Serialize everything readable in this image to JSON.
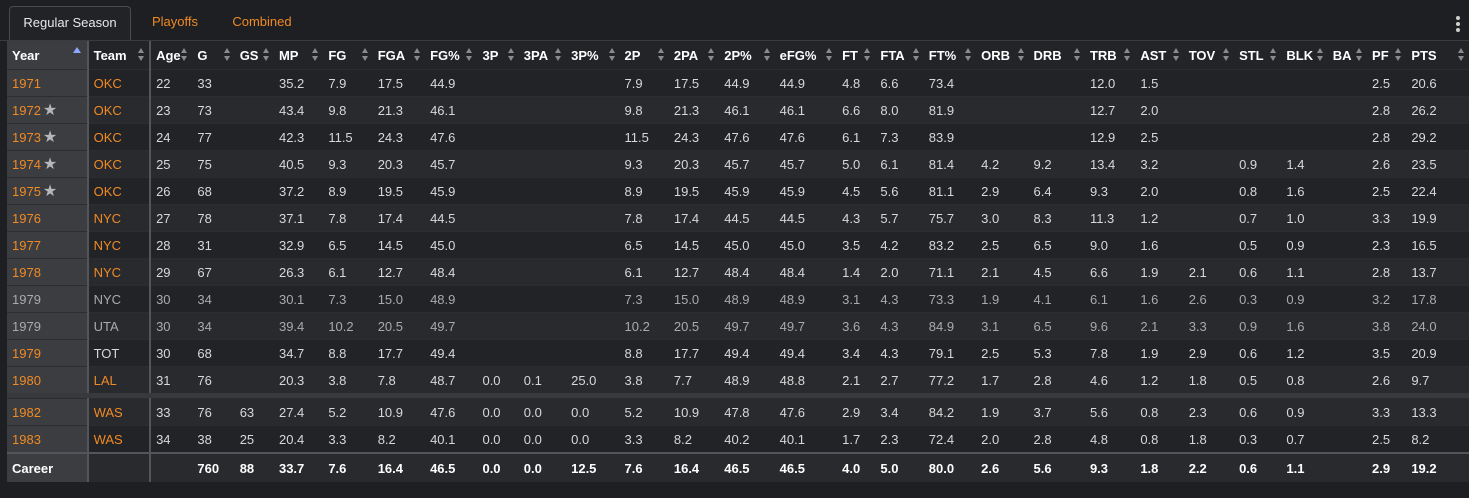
{
  "tabs": [
    {
      "label": "Regular Season",
      "active": true
    },
    {
      "label": "Playoffs",
      "active": false
    },
    {
      "label": "Combined",
      "active": false
    }
  ],
  "menu_icon": "kebab-menu-icon",
  "columns": [
    "Year",
    "Team",
    "Age",
    "G",
    "GS",
    "MP",
    "FG",
    "FGA",
    "FG%",
    "3P",
    "3PA",
    "3P%",
    "2P",
    "2PA",
    "2P%",
    "eFG%",
    "FT",
    "FTA",
    "FT%",
    "ORB",
    "DRB",
    "TRB",
    "AST",
    "TOV",
    "STL",
    "BLK",
    "BA",
    "PF",
    "PTS"
  ],
  "sorted_column": "Year",
  "rows": [
    {
      "cells": [
        "1971",
        "OKC",
        "22",
        "33",
        "",
        "35.2",
        "7.9",
        "17.5",
        "44.9",
        "",
        "",
        "",
        "7.9",
        "17.5",
        "44.9",
        "44.9",
        "4.8",
        "6.6",
        "73.4",
        "",
        "",
        "12.0",
        "1.5",
        "",
        "",
        "",
        "",
        "2.5",
        "20.6"
      ],
      "star": false,
      "dim": false,
      "year_link": true,
      "team_link": true
    },
    {
      "cells": [
        "1972",
        "OKC",
        "23",
        "73",
        "",
        "43.4",
        "9.8",
        "21.3",
        "46.1",
        "",
        "",
        "",
        "9.8",
        "21.3",
        "46.1",
        "46.1",
        "6.6",
        "8.0",
        "81.9",
        "",
        "",
        "12.7",
        "2.0",
        "",
        "",
        "",
        "",
        "2.8",
        "26.2"
      ],
      "star": true,
      "dim": false,
      "year_link": true,
      "team_link": true
    },
    {
      "cells": [
        "1973",
        "OKC",
        "24",
        "77",
        "",
        "42.3",
        "11.5",
        "24.3",
        "47.6",
        "",
        "",
        "",
        "11.5",
        "24.3",
        "47.6",
        "47.6",
        "6.1",
        "7.3",
        "83.9",
        "",
        "",
        "12.9",
        "2.5",
        "",
        "",
        "",
        "",
        "2.8",
        "29.2"
      ],
      "star": true,
      "dim": false,
      "year_link": true,
      "team_link": true
    },
    {
      "cells": [
        "1974",
        "OKC",
        "25",
        "75",
        "",
        "40.5",
        "9.3",
        "20.3",
        "45.7",
        "",
        "",
        "",
        "9.3",
        "20.3",
        "45.7",
        "45.7",
        "5.0",
        "6.1",
        "81.4",
        "4.2",
        "9.2",
        "13.4",
        "3.2",
        "",
        "0.9",
        "1.4",
        "",
        "2.6",
        "23.5"
      ],
      "star": true,
      "dim": false,
      "year_link": true,
      "team_link": true
    },
    {
      "cells": [
        "1975",
        "OKC",
        "26",
        "68",
        "",
        "37.2",
        "8.9",
        "19.5",
        "45.9",
        "",
        "",
        "",
        "8.9",
        "19.5",
        "45.9",
        "45.9",
        "4.5",
        "5.6",
        "81.1",
        "2.9",
        "6.4",
        "9.3",
        "2.0",
        "",
        "0.8",
        "1.6",
        "",
        "2.5",
        "22.4"
      ],
      "star": true,
      "dim": false,
      "year_link": true,
      "team_link": true
    },
    {
      "cells": [
        "1976",
        "NYC",
        "27",
        "78",
        "",
        "37.1",
        "7.8",
        "17.4",
        "44.5",
        "",
        "",
        "",
        "7.8",
        "17.4",
        "44.5",
        "44.5",
        "4.3",
        "5.7",
        "75.7",
        "3.0",
        "8.3",
        "11.3",
        "1.2",
        "",
        "0.7",
        "1.0",
        "",
        "3.3",
        "19.9"
      ],
      "star": false,
      "dim": false,
      "year_link": true,
      "team_link": true
    },
    {
      "cells": [
        "1977",
        "NYC",
        "28",
        "31",
        "",
        "32.9",
        "6.5",
        "14.5",
        "45.0",
        "",
        "",
        "",
        "6.5",
        "14.5",
        "45.0",
        "45.0",
        "3.5",
        "4.2",
        "83.2",
        "2.5",
        "6.5",
        "9.0",
        "1.6",
        "",
        "0.5",
        "0.9",
        "",
        "2.3",
        "16.5"
      ],
      "star": false,
      "dim": false,
      "year_link": true,
      "team_link": true
    },
    {
      "cells": [
        "1978",
        "NYC",
        "29",
        "67",
        "",
        "26.3",
        "6.1",
        "12.7",
        "48.4",
        "",
        "",
        "",
        "6.1",
        "12.7",
        "48.4",
        "48.4",
        "1.4",
        "2.0",
        "71.1",
        "2.1",
        "4.5",
        "6.6",
        "1.9",
        "2.1",
        "0.6",
        "1.1",
        "",
        "2.8",
        "13.7"
      ],
      "star": false,
      "dim": false,
      "year_link": true,
      "team_link": true
    },
    {
      "cells": [
        "1979",
        "NYC",
        "30",
        "34",
        "",
        "30.1",
        "7.3",
        "15.0",
        "48.9",
        "",
        "",
        "",
        "7.3",
        "15.0",
        "48.9",
        "48.9",
        "3.1",
        "4.3",
        "73.3",
        "1.9",
        "4.1",
        "6.1",
        "1.6",
        "2.6",
        "0.3",
        "0.9",
        "",
        "3.2",
        "17.8"
      ],
      "star": false,
      "dim": true,
      "year_link": false,
      "team_link": false
    },
    {
      "cells": [
        "1979",
        "UTA",
        "30",
        "34",
        "",
        "39.4",
        "10.2",
        "20.5",
        "49.7",
        "",
        "",
        "",
        "10.2",
        "20.5",
        "49.7",
        "49.7",
        "3.6",
        "4.3",
        "84.9",
        "3.1",
        "6.5",
        "9.6",
        "2.1",
        "3.3",
        "0.9",
        "1.6",
        "",
        "3.8",
        "24.0"
      ],
      "star": false,
      "dim": true,
      "year_link": false,
      "team_link": false
    },
    {
      "cells": [
        "1979",
        "TOT",
        "30",
        "68",
        "",
        "34.7",
        "8.8",
        "17.7",
        "49.4",
        "",
        "",
        "",
        "8.8",
        "17.7",
        "49.4",
        "49.4",
        "3.4",
        "4.3",
        "79.1",
        "2.5",
        "5.3",
        "7.8",
        "1.9",
        "2.9",
        "0.6",
        "1.2",
        "",
        "3.5",
        "20.9"
      ],
      "star": false,
      "dim": false,
      "year_link": true,
      "team_link": false
    },
    {
      "cells": [
        "1980",
        "LAL",
        "31",
        "76",
        "",
        "20.3",
        "3.8",
        "7.8",
        "48.7",
        "0.0",
        "0.1",
        "25.0",
        "3.8",
        "7.7",
        "48.9",
        "48.8",
        "2.1",
        "2.7",
        "77.2",
        "1.7",
        "2.8",
        "4.6",
        "1.2",
        "1.8",
        "0.5",
        "0.8",
        "",
        "2.6",
        "9.7"
      ],
      "star": false,
      "dim": false,
      "year_link": true,
      "team_link": true
    },
    {
      "gap": true
    },
    {
      "cells": [
        "1982",
        "WAS",
        "33",
        "76",
        "63",
        "27.4",
        "5.2",
        "10.9",
        "47.6",
        "0.0",
        "0.0",
        "0.0",
        "5.2",
        "10.9",
        "47.8",
        "47.6",
        "2.9",
        "3.4",
        "84.2",
        "1.9",
        "3.7",
        "5.6",
        "0.8",
        "2.3",
        "0.6",
        "0.9",
        "",
        "3.3",
        "13.3"
      ],
      "star": false,
      "dim": false,
      "year_link": true,
      "team_link": true
    },
    {
      "cells": [
        "1983",
        "WAS",
        "34",
        "38",
        "25",
        "20.4",
        "3.3",
        "8.2",
        "40.1",
        "0.0",
        "0.0",
        "0.0",
        "3.3",
        "8.2",
        "40.2",
        "40.1",
        "1.7",
        "2.3",
        "72.4",
        "2.0",
        "2.8",
        "4.8",
        "0.8",
        "1.8",
        "0.3",
        "0.7",
        "",
        "2.5",
        "8.2"
      ],
      "star": false,
      "dim": false,
      "year_link": true,
      "team_link": true
    }
  ],
  "career": {
    "cells": [
      "Career",
      "",
      "",
      "760",
      "88",
      "33.7",
      "7.6",
      "16.4",
      "46.5",
      "0.0",
      "0.0",
      "12.5",
      "7.6",
      "16.4",
      "46.5",
      "46.5",
      "4.0",
      "5.0",
      "80.0",
      "2.6",
      "5.6",
      "9.3",
      "1.8",
      "2.2",
      "0.6",
      "1.1",
      "",
      "2.9",
      "19.2"
    ]
  },
  "colors": {
    "link": "#f08a24",
    "background": "#1e1f22",
    "sort_active": "#8fa8ff"
  }
}
